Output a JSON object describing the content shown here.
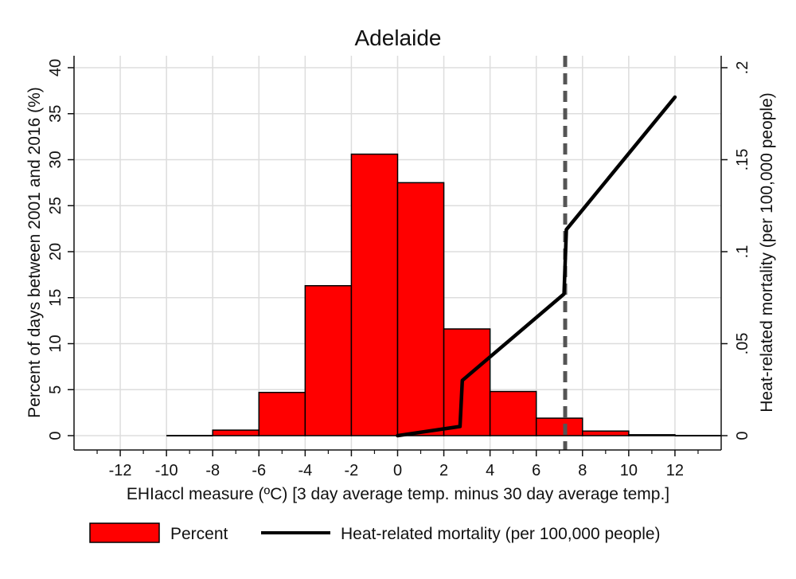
{
  "chart_data": {
    "type": "bar",
    "title": "Adelaide",
    "xlabel": "EHIaccl measure (ºC) [3 day average temp. minus 30 day average temp.]",
    "ylabel_left": "Percent of days between 2001 and 2016 (%)",
    "ylabel_right": "Heat-related mortality (per 100,000 people)",
    "xlim": [
      -14,
      14
    ],
    "ylim_left": [
      0,
      40
    ],
    "ylim_right": [
      0,
      0.2
    ],
    "x_ticks": [
      "-12",
      "-10",
      "-8",
      "-6",
      "-4",
      "-2",
      "0",
      "2",
      "4",
      "6",
      "8",
      "10",
      "12"
    ],
    "x_tick_values": [
      -12,
      -10,
      -8,
      -6,
      -4,
      -2,
      0,
      2,
      4,
      6,
      8,
      10,
      12
    ],
    "y_ticks_left": [
      "0",
      "5",
      "10",
      "15",
      "20",
      "25",
      "30",
      "35",
      "40"
    ],
    "y_tick_values_left": [
      0,
      5,
      10,
      15,
      20,
      25,
      30,
      35,
      40
    ],
    "y_ticks_right": [
      "0",
      ".05",
      ".1",
      ".15",
      ".2"
    ],
    "y_tick_values_right": [
      0,
      0.05,
      0.1,
      0.15,
      0.2
    ],
    "grid": true,
    "threshold_x": 7.25,
    "colors": {
      "bar_fill": "#ff0000",
      "bar_edge": "#000000",
      "line": "#000000",
      "threshold": "#555555",
      "grid": "#dddddd"
    },
    "series": [
      {
        "name": "Percent",
        "kind": "histogram",
        "bins": [
          {
            "from": -10,
            "to": -8,
            "value": 0
          },
          {
            "from": -8,
            "to": -6,
            "value": 0.6
          },
          {
            "from": -6,
            "to": -4,
            "value": 4.7
          },
          {
            "from": -4,
            "to": -2,
            "value": 16.3
          },
          {
            "from": -2,
            "to": 0,
            "value": 30.6
          },
          {
            "from": 0,
            "to": 2,
            "value": 27.5
          },
          {
            "from": 2,
            "to": 4,
            "value": 11.6
          },
          {
            "from": 4,
            "to": 6,
            "value": 4.8
          },
          {
            "from": 6,
            "to": 8,
            "value": 1.9
          },
          {
            "from": 8,
            "to": 10,
            "value": 0.5
          },
          {
            "from": 10,
            "to": 12,
            "value": 0.1
          },
          {
            "from": 12,
            "to": 14,
            "value": 0
          }
        ]
      },
      {
        "name": "Heat-related mortality (per 100,000 people)",
        "kind": "line",
        "axis": "right",
        "x": [
          0,
          2.7,
          2.8,
          7.2,
          7.3,
          12
        ],
        "y": [
          0,
          0.005,
          0.03,
          0.077,
          0.112,
          0.184
        ]
      }
    ],
    "legend": {
      "position": "bottom",
      "items": [
        "Percent",
        "Heat-related mortality (per 100,000 people)"
      ]
    }
  }
}
